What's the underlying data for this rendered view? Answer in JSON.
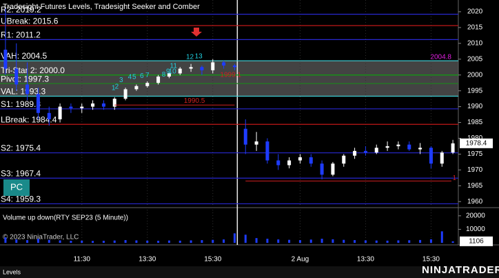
{
  "chart_data": {
    "type": "candlestick",
    "title": "Tradesight Futures Levels, Tradesight Seeker and Comber",
    "categories": [
      null,
      null,
      null,
      null,
      null,
      null,
      null,
      "11:30",
      null,
      null,
      null,
      null,
      null,
      "13:30",
      null,
      null,
      null,
      null,
      null,
      "15:30",
      null,
      null,
      null,
      null,
      null,
      null,
      null,
      "2 Aug",
      null,
      null,
      null,
      null,
      null,
      "13:30",
      null,
      null,
      null,
      null,
      null,
      "15:30",
      null,
      null
    ],
    "open": [
      2008,
      2002,
      1997,
      1994,
      1988,
      1986,
      1990,
      1989.5,
      1990,
      1991,
      1990,
      1992.5,
      1995.5,
      1996.5,
      1997.5,
      1999.5,
      2000.5,
      2002,
      2002.5,
      2001.5,
      2004,
      2003,
      1983,
      1978,
      1979,
      1973,
      1971.5,
      1973,
      1974,
      1972,
      1968.5,
      1972,
      1974.5,
      1976,
      1975.5,
      1977,
      1977.5,
      1978,
      1976.5,
      1977,
      1972,
      1975.5
    ],
    "high": [
      2021,
      2010,
      2004,
      1996,
      1990,
      1991,
      1991,
      1991,
      1992,
      1992,
      1993,
      1996,
      1997,
      1998,
      2000,
      2001,
      2002.5,
      2003.5,
      2003,
      2005,
      2004.5,
      2003.5,
      1986,
      1982,
      1980,
      1975,
      1974,
      1975,
      1975,
      1973,
      1972.5,
      1975,
      1977,
      1977.5,
      1978,
      1979,
      1979,
      1979,
      1978.5,
      1977.5,
      1976,
      1979.5
    ],
    "low": [
      2000,
      1995,
      1992,
      1986,
      1984,
      1985,
      1988,
      1988,
      1989,
      1989,
      1989,
      1992,
      1995,
      1996,
      1997,
      1999,
      2000,
      2001,
      2000,
      2000.5,
      2002,
      2001.5,
      1975,
      1976,
      1972,
      1970,
      1970.5,
      1972,
      1971,
      1967,
      1968,
      1971,
      1973.5,
      1974.5,
      1975,
      1976,
      1976.5,
      1976,
      1975,
      1970.5,
      1971,
      1975
    ],
    "close": [
      2002,
      1997,
      1994,
      1988,
      1986,
      1990,
      1989.5,
      1990,
      1991,
      1990,
      1992.5,
      1995.5,
      1996.5,
      1997.5,
      1999.5,
      2000.5,
      2002,
      2002.5,
      2001.5,
      2004,
      2003,
      2002.5,
      1978,
      1979,
      1973,
      1971.5,
      1973,
      1974,
      1972,
      1968.5,
      1972,
      1974.5,
      1976,
      1975.5,
      1977,
      1977.5,
      1978,
      1976.5,
      1977,
      1972,
      1975.5,
      1978.4
    ],
    "up_color": "#ffffff",
    "down_color": "#1e3cff",
    "ylim": [
      1958.3,
      2023.7
    ],
    "yticks": [
      1960,
      1965,
      1970,
      1975,
      1980,
      1985,
      1990,
      1995,
      2000,
      2005,
      2010,
      2015,
      2020
    ],
    "levels": [
      {
        "label": "R2: 2019.2",
        "value": 2019.2,
        "color": "#2828d0"
      },
      {
        "label": "UBreak: 2015.6",
        "value": 2015.6,
        "color": "#c01818"
      },
      {
        "label": "R1: 2011.2",
        "value": 2011.2,
        "color": "#2828d0"
      },
      {
        "label": "VAH: 2004.5",
        "value": 2004.5,
        "color": "#40d8e0"
      },
      {
        "label": "Tri-Star 2: 2000.0",
        "value": 2000.0,
        "color": "#10a010"
      },
      {
        "label": "Pivot: 1997.3",
        "value": 1997.3,
        "color": "#208020"
      },
      {
        "label": "VAL: 1993.3",
        "value": 1993.3,
        "color": "#40d8e0"
      },
      {
        "label": "S1: 1989.3",
        "value": 1989.3,
        "color": "#2828d0"
      },
      {
        "label": "LBreak: 1984.4",
        "value": 1984.4,
        "color": "#c01818"
      },
      {
        "label": "S2: 1975.4",
        "value": 1975.4,
        "color": "#2828d0"
      },
      {
        "label": "S3: 1967.4",
        "value": 1967.4,
        "color": "#2828d0"
      },
      {
        "label": "S4: 1959.3",
        "value": 1959.3,
        "color": "#2828d0"
      }
    ],
    "value_area_color": "#5a5a5a",
    "annotations": [
      {
        "label": "2004.8",
        "value": 2004.8,
        "color": "#e020e0"
      },
      {
        "label": "1999.1",
        "value": 1999.1,
        "color": "#d02020"
      },
      {
        "label": "1990.5",
        "value": 1990.5,
        "color": "#d02020"
      },
      {
        "label": "1",
        "value": 1966.5,
        "color": "#d02020"
      }
    ],
    "seeker_counts": [
      {
        "label": "1",
        "bar": 9.9,
        "value": 1994.5
      },
      {
        "label": "2",
        "bar": 10.2,
        "value": 1995
      },
      {
        "label": "3",
        "bar": 10.6,
        "value": 1997
      },
      {
        "label": "4",
        "bar": 11.4,
        "value": 1998
      },
      {
        "label": "5",
        "bar": 11.8,
        "value": 1998
      },
      {
        "label": "6",
        "bar": 12.5,
        "value": 1998.3
      },
      {
        "label": "7",
        "bar": 13,
        "value": 1998.5
      },
      {
        "label": "8",
        "bar": 14.5,
        "value": 1998.8
      },
      {
        "label": "9",
        "bar": 14.9,
        "value": 1999.8
      },
      {
        "label": "10",
        "bar": 15.3,
        "value": 1999.8
      },
      {
        "label": "11",
        "bar": 15.4,
        "value": 2001.5
      },
      {
        "label": "12",
        "bar": 16.9,
        "value": 2004.3
      },
      {
        "label": "13",
        "bar": 17.7,
        "value": 2004.5
      }
    ],
    "seeker_color": "#20d0e0",
    "volume": {
      "title": "Volume up down(RTY SEP23 (5 Minute))",
      "values": [
        4000,
        2500,
        2000,
        3000,
        2200,
        1800,
        1500,
        1600,
        1400,
        1500,
        1700,
        2000,
        1800,
        1600,
        1500,
        1700,
        1600,
        1800,
        2000,
        2200,
        2500,
        7000,
        6000,
        3500,
        3000,
        2500,
        2200,
        2000,
        2400,
        3000,
        2600,
        2200,
        2000,
        1800,
        1700,
        1600,
        1800,
        1900,
        2100,
        2600,
        8500,
        1106
      ],
      "ylim": [
        0,
        24000
      ],
      "yticks": [
        10000,
        20000
      ],
      "color": "#1e3cff"
    },
    "copyright": "© 2023 NinjaTrader, LLC"
  },
  "ui": {
    "button": "PC",
    "tab": "Levels",
    "logo": "NINJATRADER"
  }
}
